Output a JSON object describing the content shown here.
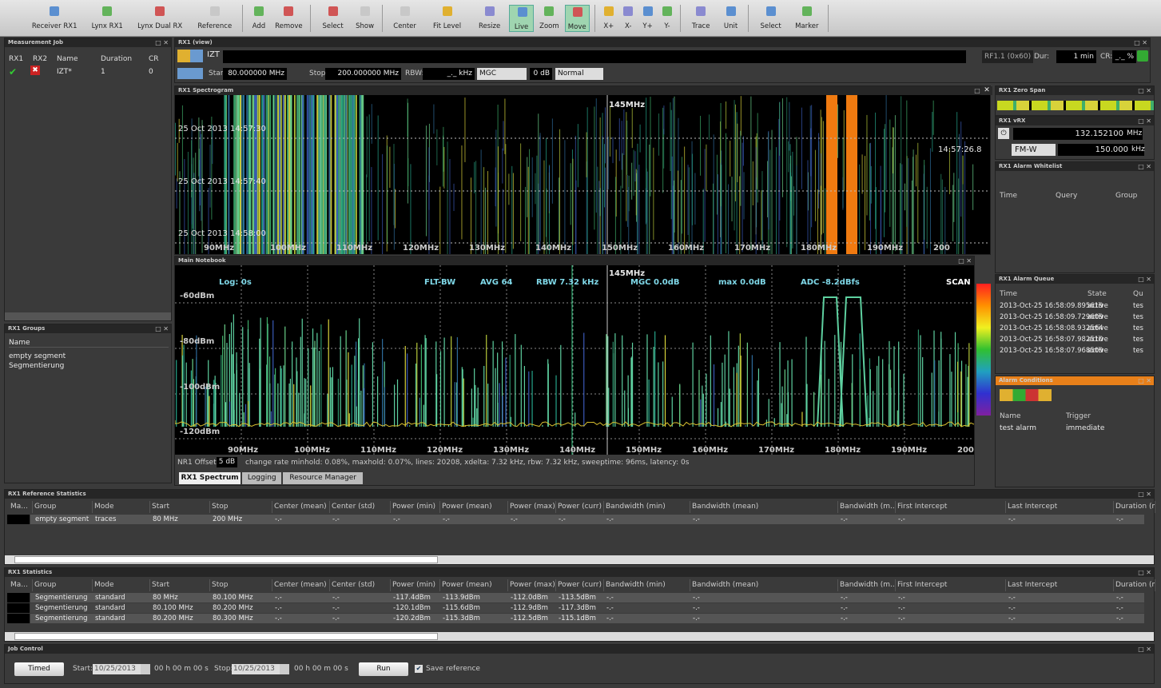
{
  "toolbar": {
    "groups": [
      [
        "Receiver RX1",
        "Lynx RX1",
        "Lynx Dual RX",
        "Reference"
      ],
      [
        "Add",
        "Remove"
      ],
      [
        "Select",
        "Show"
      ],
      [
        "Center",
        "Fit Level",
        "Resize",
        "Live",
        "Zoom",
        "Move"
      ],
      [
        "X+",
        "X-",
        "Y+",
        "Y-"
      ],
      [
        "Trace",
        "Unit"
      ],
      [
        "Select",
        "Marker"
      ]
    ]
  },
  "measurement_job": {
    "title": "Measurement Job",
    "columns": [
      "RX1",
      "RX2",
      "Name",
      "Duration",
      "CR"
    ],
    "rows": [
      [
        "IZT*",
        "1",
        "0"
      ]
    ]
  },
  "groups": {
    "title": "RX1 Groups",
    "header": "Name",
    "rows": [
      "empty segment",
      "Segmentierung"
    ]
  },
  "view": {
    "title": "RX1 (view)",
    "name": "IZT",
    "start_label": "Start:",
    "start": "80.000000 MHz",
    "stop_label": "Stop:",
    "stop": "200.000000 MHz",
    "rbw_label": "RBW:",
    "rbw": "_._ kHz",
    "mode": "MGC",
    "gain": "0 dB",
    "normal": "Normal",
    "source": "RF1.1 (0x60)",
    "dur_label": "Dur:",
    "dur": "1 min",
    "cr_label": "CR:",
    "cr": "_._ %"
  },
  "spectrogram": {
    "title": "RX1 Spectrogram",
    "marker": "145MHz",
    "times": [
      "25 Oct 2013 14:57:30",
      "25 Oct 2013 14:57:40",
      "25 Oct 2013 14:58:00"
    ],
    "right_time": "14:57:26.8",
    "freq_labels": [
      "90MHz",
      "100MHz",
      "110MHz",
      "120MHz",
      "130MHz",
      "140MHz",
      "150MHz",
      "160MHz",
      "170MHz",
      "180MHz",
      "190MHz",
      "200"
    ]
  },
  "notebook": {
    "title": "Main Notebook",
    "marker": "145MHz",
    "status": [
      "Log: 0s",
      "FLT-BW",
      "AVG 64",
      "RBW 7.32 kHz",
      "MGC 0.0dB",
      "max 0.0dB",
      "ADC -8.2dBfs",
      "SCAN"
    ],
    "levels": [
      "-60dBm",
      "-80dBm",
      "-100dBm",
      "-120dBm"
    ],
    "freq_labels": [
      "90MHz",
      "100MHz",
      "110MHz",
      "120MHz",
      "130MHz",
      "140MHz",
      "150MHz",
      "160MHz",
      "170MHz",
      "180MHz",
      "190MHz",
      "200"
    ],
    "offset_label": "NR1 Offset:",
    "offset": "5 dB",
    "info": "change rate minhold: 0.08%, maxhold: 0.07%, lines: 20208, xdelta: 7.32 kHz, rbw: 7.32 kHz, sweeptime: 96ms, latency: 0s",
    "tabs": [
      "RX1 Spectrum",
      "Logging",
      "Resource Manager"
    ]
  },
  "zero_span": {
    "title": "RX1 Zero Span"
  },
  "vrx": {
    "title": "RX1 vRX",
    "freq": "132.152100",
    "freq_unit": "MHz",
    "demod": "FM-W",
    "bw": "150.000",
    "bw_unit": "kHz"
  },
  "whitelist": {
    "title": "RX1 Alarm Whitelist",
    "columns": [
      "Time",
      "Query",
      "Group"
    ]
  },
  "alarm_queue": {
    "title": "RX1 Alarm Queue",
    "columns": [
      "Time",
      "State",
      "Qu"
    ],
    "rows": [
      [
        "2013-Oct-25 16:58:09.895619",
        "active",
        "tes"
      ],
      [
        "2013-Oct-25 16:58:09.729609",
        "active",
        "tes"
      ],
      [
        "2013-Oct-25 16:58:08.932564",
        "active",
        "tes"
      ],
      [
        "2013-Oct-25 16:58:07.982510",
        "active",
        "tes"
      ],
      [
        "2013-Oct-25 16:58:07.968509",
        "active",
        "tes"
      ]
    ]
  },
  "alarm_conditions": {
    "title": "Alarm Conditions",
    "columns": [
      "Name",
      "Trigger"
    ],
    "rows": [
      [
        "test alarm",
        "immediate"
      ]
    ]
  },
  "reference_statistics": {
    "title": "RX1 Reference Statistics",
    "columns": [
      "Ma...",
      "Group",
      "Mode",
      "Start",
      "Stop",
      "Center (mean)",
      "Center (std)",
      "Power (min)",
      "Power (mean)",
      "Power (max)",
      "Power (curr)",
      "Bandwidth (min)",
      "Bandwidth (mean)",
      "Bandwidth (m...",
      "First Intercept",
      "Last Intercept",
      "Duration (m"
    ],
    "rows": [
      [
        "empty segment",
        "traces",
        "80 MHz",
        "200 MHz",
        "-.-",
        "-.-",
        "-.-",
        "-.-",
        "-.-",
        "-.-",
        "-.-",
        "-.-",
        "-.-",
        "-.-",
        "-.-",
        "-.-"
      ]
    ]
  },
  "statistics": {
    "title": "RX1 Statistics",
    "columns": [
      "Ma...",
      "Group",
      "Mode",
      "Start",
      "Stop",
      "Center (mean)",
      "Center (std)",
      "Power (min)",
      "Power (mean)",
      "Power (max)",
      "Power (curr)",
      "Bandwidth (min)",
      "Bandwidth (mean)",
      "Bandwidth (m...",
      "First Intercept",
      "Last Intercept",
      "Duration (m"
    ],
    "rows": [
      [
        "Segmentierung",
        "standard",
        "80 MHz",
        "80.100 MHz",
        "-.-",
        "-.-",
        "-117.4dBm",
        "-113.9dBm",
        "-112.0dBm",
        "-113.5dBm",
        "-.-",
        "-.-",
        "-.-",
        "-.-",
        "-.-",
        "-.-"
      ],
      [
        "Segmentierung",
        "standard",
        "80.100 MHz",
        "80.200 MHz",
        "-.-",
        "-.-",
        "-120.1dBm",
        "-115.6dBm",
        "-112.9dBm",
        "-117.3dBm",
        "-.-",
        "-.-",
        "-.-",
        "-.-",
        "-.-",
        "-.-"
      ],
      [
        "Segmentierung",
        "standard",
        "80.200 MHz",
        "80.300 MHz",
        "-.-",
        "-.-",
        "-120.2dBm",
        "-115.3dBm",
        "-112.5dBm",
        "-115.1dBm",
        "-.-",
        "-.-",
        "-.-",
        "-.-",
        "-.-",
        "-.-"
      ]
    ]
  },
  "job_control": {
    "title": "Job Control",
    "timed": "Timed",
    "start_label": "Start:",
    "start_date": "10/25/2013",
    "start_time": "00 h 00 m 00 s",
    "stop_label": "Stop:",
    "stop_date": "10/25/2013",
    "stop_time": "00 h 00 m 00 s",
    "run": "Run",
    "save_reference": "Save reference"
  }
}
